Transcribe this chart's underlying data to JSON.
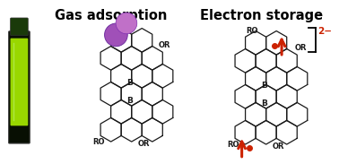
{
  "title_left": "Gas adsorption",
  "title_right": "Electron storage",
  "title_fontsize": 10.5,
  "title_fontweight": "bold",
  "bg_color": "#ffffff",
  "charge_label": "2−",
  "charge_color": "#cc2200",
  "arrow_color": "#cc2200",
  "dot_color": "#cc2200",
  "mol_color": "#1a1a1a",
  "sphere_color1": "#c070c8",
  "sphere_color2": "#a050b8",
  "label_RO": "RO",
  "label_OR": "OR",
  "label_B": "B",
  "label_fontsize": 6.0,
  "b_fontsize": 6.5
}
